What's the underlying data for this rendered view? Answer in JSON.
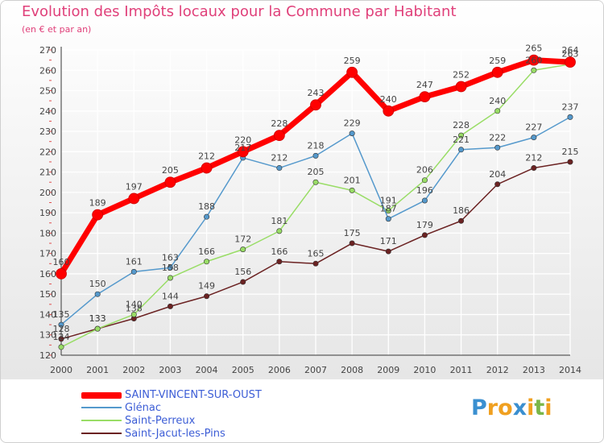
{
  "header": {
    "title": "Evolution des Impôts locaux pour la Commune par Habitant",
    "subtitle": "(en € et par an)"
  },
  "chart_data": {
    "type": "line",
    "title": "Evolution des Impôts locaux pour la Commune par Habitant",
    "subtitle": "(en € et par an)",
    "xlabel": "",
    "ylabel": "",
    "categories": [
      "2000",
      "2001",
      "2002",
      "2003",
      "2004",
      "2005",
      "2006",
      "2007",
      "2008",
      "2009",
      "2010",
      "2011",
      "2012",
      "2013",
      "2014"
    ],
    "ylim": [
      120,
      270
    ],
    "yticks": [
      120,
      130,
      140,
      150,
      160,
      170,
      180,
      190,
      200,
      210,
      220,
      230,
      240,
      250,
      260,
      270
    ],
    "grid": true,
    "legend": "bottom-left",
    "series": [
      {
        "name": "SAINT-VINCENT-SUR-OUST",
        "color": "#ff0000",
        "values": [
          160,
          189,
          197,
          205,
          212,
          220,
          228,
          243,
          259,
          240,
          247,
          252,
          259,
          265,
          264
        ],
        "labels": [
          "160",
          "189",
          "197",
          "205",
          "212",
          "220",
          "228",
          "243",
          "259",
          "240",
          "247",
          "252",
          "259",
          "265",
          "264"
        ]
      },
      {
        "name": "Glénac",
        "color": "#5599cc",
        "values": [
          135,
          150,
          161,
          163,
          188,
          217,
          212,
          218,
          229,
          187,
          196,
          221,
          222,
          227,
          237
        ],
        "labels": [
          "135",
          "150",
          "161",
          "163",
          "188",
          "217",
          "212",
          "218",
          "229",
          "187",
          "196",
          "221",
          "222",
          "227",
          "237"
        ]
      },
      {
        "name": "Saint-Perreux",
        "color": "#99dd66",
        "values": [
          124,
          133,
          140,
          158,
          166,
          172,
          181,
          205,
          201,
          191,
          206,
          228,
          240,
          260,
          263
        ],
        "labels": [
          "124",
          "133",
          "140",
          "158",
          "166",
          "172",
          "181",
          "205",
          "201",
          "191",
          "206",
          "228",
          "240",
          "260",
          "263"
        ]
      },
      {
        "name": "Saint-Jacut-les-Pins",
        "color": "#6b2222",
        "values": [
          128,
          133,
          138,
          144,
          149,
          156,
          166,
          165,
          175,
          171,
          179,
          186,
          204,
          212,
          215
        ],
        "labels": [
          "128",
          "133",
          "138",
          "144",
          "149",
          "156",
          "166",
          "165",
          "175",
          "171",
          "179",
          "186",
          "204",
          "212",
          "215"
        ]
      }
    ]
  },
  "legend": {
    "items": [
      {
        "label": "SAINT-VINCENT-SUR-OUST",
        "color": "#ff0000"
      },
      {
        "label": "Glénac",
        "color": "#5599cc"
      },
      {
        "label": "Saint-Perreux",
        "color": "#99dd66"
      },
      {
        "label": "Saint-Jacut-les-Pins",
        "color": "#6b2222"
      }
    ]
  },
  "logo": {
    "letters": [
      "P",
      "r",
      "o",
      "x",
      "i",
      "t",
      "i"
    ],
    "colors": [
      "#3a8fd0",
      "#f0a020",
      "#f0a020",
      "#3a8fd0",
      "#f0a020",
      "#7ab648",
      "#f0a020"
    ]
  }
}
